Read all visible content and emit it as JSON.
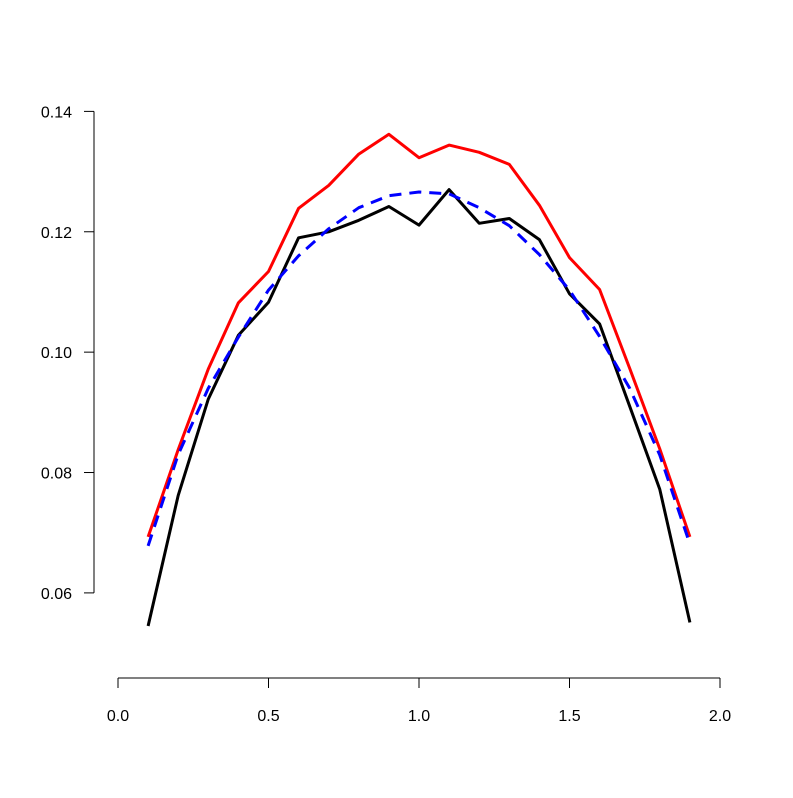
{
  "chart_data": {
    "type": "line",
    "title": "",
    "xlabel": "",
    "ylabel": "",
    "xlim": [
      0.0,
      2.0
    ],
    "ylim": [
      0.0545,
      0.1394
    ],
    "x_ticks": [
      0.0,
      0.5,
      1.0,
      1.5,
      2.0
    ],
    "x_tick_labels": [
      "0.0",
      "0.5",
      "1.0",
      "1.5",
      "2.0"
    ],
    "y_ticks": [
      0.06,
      0.08,
      0.1,
      0.12,
      0.14
    ],
    "y_tick_labels": [
      "0.06",
      "0.08",
      "0.10",
      "0.12",
      "0.14"
    ],
    "grid": false,
    "legend": "none",
    "x": [
      0.1,
      0.2,
      0.3,
      0.4,
      0.5,
      0.6,
      0.7,
      0.8,
      0.9,
      1.0,
      1.1,
      1.2,
      1.3,
      1.4,
      1.5,
      1.6,
      1.7,
      1.8,
      1.9
    ],
    "series": [
      {
        "color": "#ff0000",
        "dash": "solid",
        "values": [
          0.0693,
          0.0838,
          0.0972,
          0.1082,
          0.1134,
          0.1239,
          0.1277,
          0.1329,
          0.1362,
          0.1323,
          0.1344,
          0.1332,
          0.1312,
          0.1244,
          0.1157,
          0.1104,
          0.0973,
          0.0839,
          0.0693
        ]
      },
      {
        "color": "#000000",
        "dash": "solid",
        "values": [
          0.0545,
          0.0762,
          0.0922,
          0.1028,
          0.1083,
          0.119,
          0.12,
          0.1219,
          0.1242,
          0.1211,
          0.127,
          0.1214,
          0.1222,
          0.1187,
          0.1097,
          0.1047,
          0.091,
          0.0772,
          0.0551
        ]
      },
      {
        "color": "#0000ff",
        "dash": "dashed",
        "values": [
          0.0678,
          0.083,
          0.094,
          0.1025,
          0.1103,
          0.116,
          0.1205,
          0.124,
          0.126,
          0.1266,
          0.1263,
          0.124,
          0.121,
          0.1162,
          0.1103,
          0.1026,
          0.094,
          0.0829,
          0.0681
        ]
      }
    ]
  }
}
